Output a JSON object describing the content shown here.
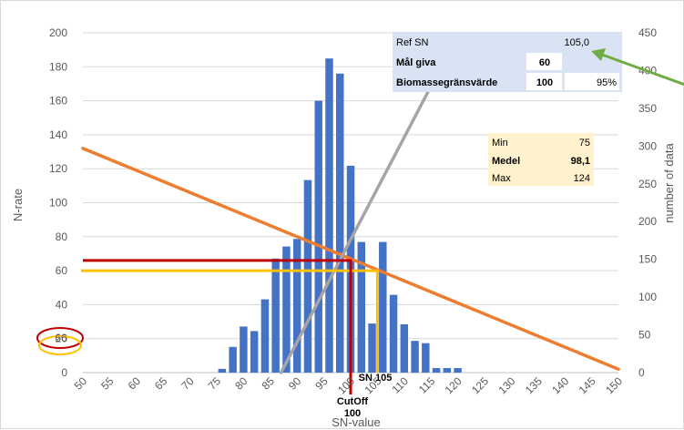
{
  "chart_data": {
    "type": "bar",
    "title": "",
    "x": [
      50,
      51,
      52,
      53,
      54,
      55,
      56,
      57,
      58,
      59,
      60,
      61,
      62,
      63,
      64,
      65,
      66,
      67,
      68,
      69,
      70,
      71,
      72,
      73,
      74,
      75,
      76,
      77,
      78,
      79,
      80,
      81,
      82,
      83,
      84,
      85,
      86,
      87,
      88,
      89,
      90,
      91,
      92,
      93,
      94,
      95,
      96,
      97,
      98,
      99,
      100,
      101,
      102,
      103,
      104,
      105,
      106,
      107,
      108,
      109,
      110,
      111,
      112,
      113,
      114,
      115,
      116,
      117,
      118,
      119,
      120,
      121,
      122,
      123,
      124,
      125,
      126,
      127,
      128,
      129,
      130,
      131,
      132,
      133,
      134,
      135,
      136,
      137,
      138,
      139,
      140,
      141,
      142,
      143,
      144,
      145,
      146,
      147,
      148,
      149,
      150
    ],
    "x_ticks": [
      "50",
      "55",
      "60",
      "65",
      "70",
      "75",
      "80",
      "85",
      "90",
      "95",
      "100",
      "105",
      "110",
      "115",
      "120",
      "125",
      "130",
      "135",
      "140",
      "145",
      "150"
    ],
    "xlabel": "SN-value",
    "ylabel_left": "N-rate",
    "ylabel_right": "number of data",
    "ylim_left": [
      0,
      200
    ],
    "ylim_right": [
      0,
      450
    ],
    "y_ticks_left": [
      "0",
      "20",
      "40",
      "60",
      "80",
      "100",
      "120",
      "140",
      "160",
      "180",
      "200"
    ],
    "y_ticks_right": [
      "0",
      "50",
      "100",
      "150",
      "200",
      "250",
      "300",
      "350",
      "400",
      "450"
    ],
    "series": [
      {
        "name": "number of data",
        "axis": "right",
        "type": "bar",
        "color": "#4472c4",
        "x": [
          76,
          78,
          80,
          82,
          84,
          86,
          88,
          90,
          92,
          94,
          96,
          98,
          100,
          102,
          104,
          106,
          108,
          110,
          112,
          114,
          116,
          118,
          120,
          122,
          124
        ],
        "values": [
          5,
          34,
          61,
          55,
          97,
          151,
          167,
          177,
          255,
          360,
          416,
          396,
          274,
          173,
          65,
          173,
          103,
          64,
          42,
          39,
          6,
          6,
          6,
          0,
          0
        ]
      },
      {
        "name": "N-rate",
        "axis": "left",
        "type": "line",
        "color": "#ed7d31",
        "x": [
          50,
          150
        ],
        "values": [
          132,
          2
        ]
      },
      {
        "name": "",
        "axis": "right",
        "type": "line",
        "color": "#a5a5a5",
        "x": [
          87,
          118
        ],
        "values": [
          0,
          420
        ]
      }
    ],
    "reference_lines": {
      "red_color": "#c00000",
      "yellow_color": "#ffc000",
      "red_x": 100,
      "red_y": 66,
      "yellow_x": 105,
      "yellow_y": 60,
      "red_label": "66",
      "cutoff_label": "CutOff",
      "cutoff_value": "100",
      "sn_label": "SN 105"
    },
    "grid": true
  },
  "ref_table": {
    "rows": [
      {
        "label": "Ref SN",
        "value": "105,0",
        "extra": ""
      },
      {
        "label": "Mål giva",
        "value": "60",
        "extra": ""
      },
      {
        "label": "Biomassegränsvärde",
        "value": "100",
        "extra": "95%"
      }
    ]
  },
  "stats_table": {
    "rows": [
      {
        "label": "Min",
        "value": "75"
      },
      {
        "label": "Medel",
        "value": "98,1"
      },
      {
        "label": "Max",
        "value": "124"
      }
    ]
  },
  "colors": {
    "bar": "#4472c4",
    "orange_line": "#ed7d31",
    "gray_line": "#a5a5a5",
    "red": "#c00000",
    "yellow": "#ffc000",
    "arrow": "#70ad47",
    "ref_bg": "#dae3f3",
    "stats_bg": "#fff2cc"
  }
}
